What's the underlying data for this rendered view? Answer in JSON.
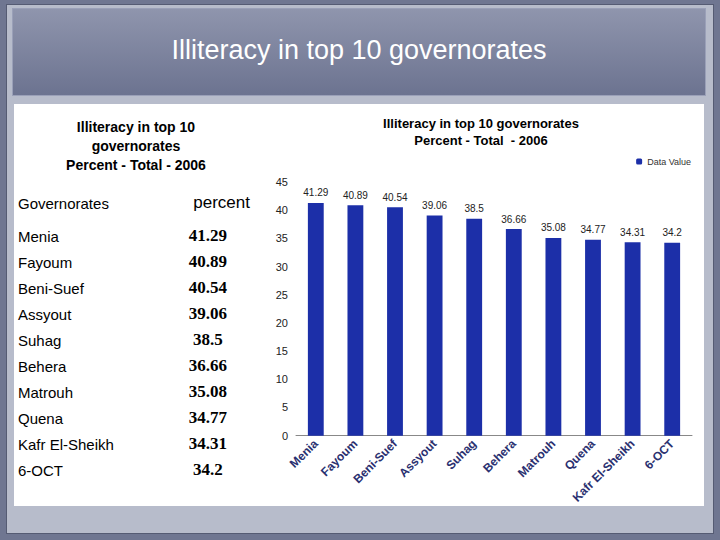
{
  "page": {
    "title": "Illiteracy in top 10 governorates"
  },
  "table": {
    "title": [
      "Illiteracy in top 10",
      "governorates",
      "Percent - Total  - 2006"
    ],
    "header": [
      "Governorates",
      "percent"
    ],
    "rows": [
      [
        "Menia",
        "41.29"
      ],
      [
        "Fayoum",
        "40.89"
      ],
      [
        "Beni-Suef",
        "40.54"
      ],
      [
        "Assyout",
        "39.06"
      ],
      [
        "Suhag",
        "38.5"
      ],
      [
        "Behera",
        "36.66"
      ],
      [
        "Matrouh",
        "35.08"
      ],
      [
        "Quena",
        "34.77"
      ],
      [
        "Kafr El-Sheikh",
        "34.31"
      ],
      [
        "6-OCT",
        "34.2"
      ]
    ]
  },
  "chart_data": {
    "type": "bar",
    "title": "Illiteracy in top 10 governorates",
    "subtitle": "Percent - Total  - 2006",
    "categories": [
      "Menia",
      "Fayoum",
      "Beni-Suef",
      "Assyout",
      "Suhag",
      "Behera",
      "Matrouh",
      "Quena",
      "Kafr El-Sheikh",
      "6-OCT"
    ],
    "series": [
      {
        "name": "Data Value",
        "color": "#1c2fa8",
        "values": [
          41.29,
          40.89,
          40.54,
          39.06,
          38.5,
          36.66,
          35.08,
          34.77,
          34.31,
          34.2
        ]
      }
    ],
    "ylim": [
      0,
      45
    ],
    "yticks": [
      0,
      5,
      10,
      15,
      20,
      25,
      30,
      35,
      40,
      45
    ],
    "grid": false,
    "legend": "top-right",
    "data_labels": true
  }
}
